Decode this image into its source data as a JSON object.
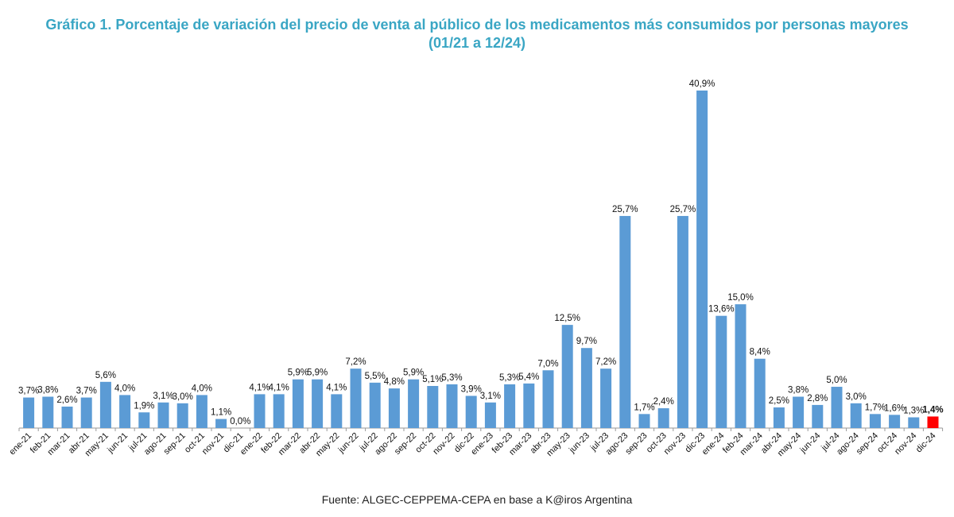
{
  "chart_data": {
    "type": "bar",
    "title": "Gráfico 1. Porcentaje de variación del precio de venta al público de los medicamentos más consumidos por personas mayores",
    "subtitle": "(01/21 a 12/24)",
    "source": "Fuente: ALGEC-CEPPEMA-CEPA en base a K@iros Argentina",
    "xlabel": "",
    "ylabel": "",
    "ylim": [
      0,
      41
    ],
    "grid": false,
    "legend": "none",
    "bar_color": "#5b9bd5",
    "highlight_color": "#ff0000",
    "highlight_index": 47,
    "categories": [
      "ene-21",
      "feb-21",
      "mar-21",
      "abr-21",
      "may-21",
      "jun-21",
      "jul-21",
      "ago-21",
      "sep-21",
      "oct-21",
      "nov-21",
      "dic-21",
      "ene-22",
      "feb-22",
      "mar-22",
      "abr-22",
      "may-22",
      "jun-22",
      "jul-22",
      "ago-22",
      "sep-22",
      "oct-22",
      "nov-22",
      "dic-22",
      "ene-23",
      "feb-23",
      "mar-23",
      "abr-23",
      "may-23",
      "jun-23",
      "jul-23",
      "ago-23",
      "sep-23",
      "oct-23",
      "nov-23",
      "dic-23",
      "ene-24",
      "feb-24",
      "mar-24",
      "abr-24",
      "may-24",
      "jun-24",
      "jul-24",
      "ago-24",
      "sep-24",
      "oct-24",
      "nov-24",
      "dic-24"
    ],
    "values": [
      3.7,
      3.8,
      2.6,
      3.7,
      5.6,
      4.0,
      1.9,
      3.1,
      3.0,
      4.0,
      1.1,
      0.0,
      4.1,
      4.1,
      5.9,
      5.9,
      4.1,
      7.2,
      5.5,
      4.8,
      5.9,
      5.1,
      5.3,
      3.9,
      3.1,
      5.3,
      5.4,
      7.0,
      12.5,
      9.7,
      7.2,
      25.7,
      1.7,
      2.4,
      25.7,
      40.9,
      13.6,
      15.0,
      8.4,
      2.5,
      3.8,
      2.8,
      5.0,
      3.0,
      1.7,
      1.6,
      1.3,
      1.4
    ],
    "data_labels": [
      "3,7%",
      "3,8%",
      "2,6%",
      "3,7%",
      "5,6%",
      "4,0%",
      "1,9%",
      "3,1%",
      "3,0%",
      "4,0%",
      "1,1%",
      "0,0%",
      "4,1%",
      "4,1%",
      "5,9%",
      "5,9%",
      "4,1%",
      "7,2%",
      "5,5%",
      "4,8%",
      "5,9%",
      "5,1%",
      "5,3%",
      "3,9%",
      "3,1%",
      "5,3%",
      "5,4%",
      "7,0%",
      "12,5%",
      "9,7%",
      "7,2%",
      "25,7%",
      "1,7%",
      "2,4%",
      "25,7%",
      "40,9%",
      "13,6%",
      "15,0%",
      "8,4%",
      "2,5%",
      "3,8%",
      "2,8%",
      "5,0%",
      "3,0%",
      "1,7%",
      "1,6%",
      "1,3%",
      "1,4%"
    ]
  }
}
